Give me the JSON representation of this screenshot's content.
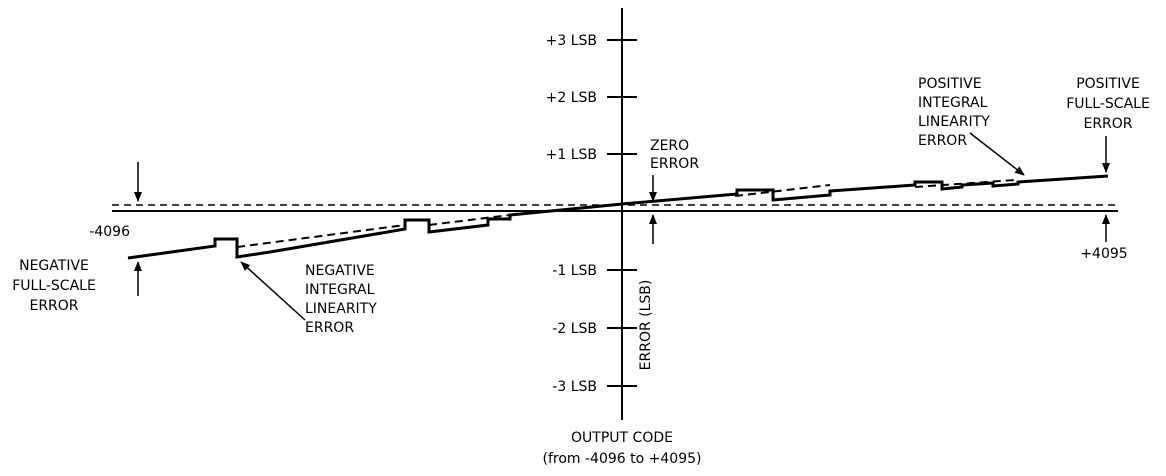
{
  "y_axis": {
    "ticks": [
      "+3 LSB",
      "+2 LSB",
      "+1 LSB",
      "-1 LSB",
      "-2 LSB",
      "-3 LSB"
    ],
    "label": "ERROR (LSB)"
  },
  "x_axis": {
    "min_label": "-4096",
    "max_label": "+4095",
    "title": "OUTPUT CODE",
    "subtitle": "(from -4096 to +4095)"
  },
  "annotations": {
    "zero_error": [
      "ZERO",
      "ERROR"
    ],
    "negative_full_scale": [
      "NEGATIVE",
      "FULL-SCALE",
      "ERROR"
    ],
    "positive_full_scale": [
      "POSITIVE",
      "FULL-SCALE",
      "ERROR"
    ],
    "negative_integral": [
      "NEGATIVE",
      "INTEGRAL",
      "LINEARITY",
      "ERROR"
    ],
    "positive_integral": [
      "POSITIVE",
      "INTEGRAL",
      "LINEARITY",
      "ERROR"
    ]
  }
}
